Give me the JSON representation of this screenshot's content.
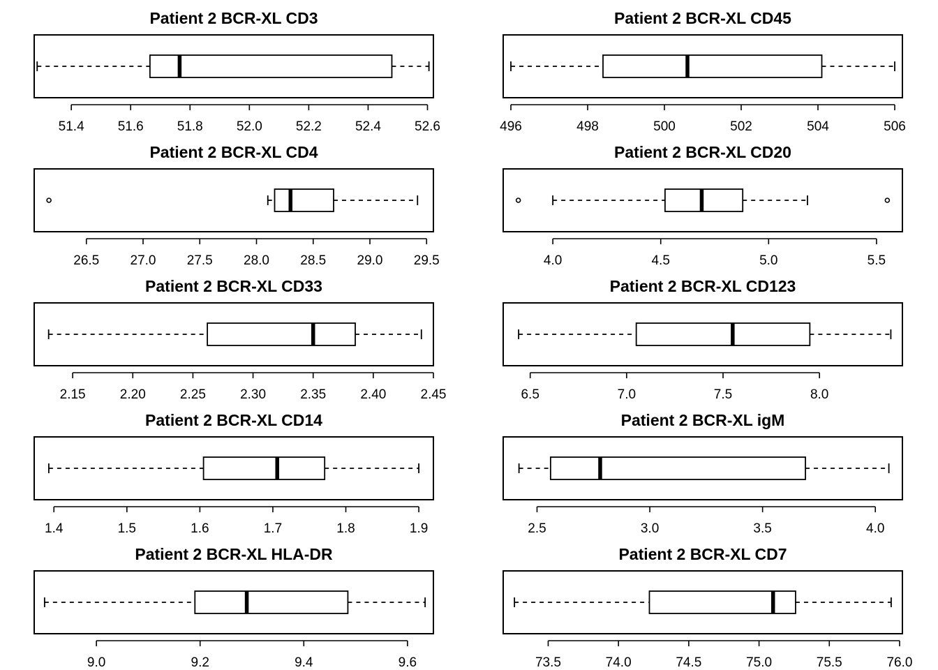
{
  "chart_data": [
    {
      "type": "boxplot",
      "title": "Patient 2 BCR-XL CD3",
      "orientation": "horizontal",
      "xlim": [
        51.275,
        52.62
      ],
      "ticks": [
        "51.4",
        "51.6",
        "51.8",
        "52.0",
        "52.2",
        "52.4",
        "52.6"
      ],
      "whisker_low": 51.285,
      "q1": 51.665,
      "median": 51.765,
      "q3": 52.48,
      "whisker_high": 52.605,
      "outliers": []
    },
    {
      "type": "boxplot",
      "title": "Patient 2 BCR-XL CD45",
      "orientation": "horizontal",
      "xlim": [
        495.8,
        506.2
      ],
      "ticks": [
        "496",
        "498",
        "500",
        "502",
        "504",
        "506"
      ],
      "whisker_low": 496.0,
      "q1": 498.4,
      "median": 500.6,
      "q3": 504.1,
      "whisker_high": 506.0,
      "outliers": []
    },
    {
      "type": "boxplot",
      "title": "Patient 2 BCR-XL CD4",
      "orientation": "horizontal",
      "xlim": [
        26.04,
        29.56
      ],
      "ticks": [
        "26.5",
        "27.0",
        "27.5",
        "28.0",
        "28.5",
        "29.0",
        "29.5"
      ],
      "whisker_low": 28.1,
      "q1": 28.16,
      "median": 28.3,
      "q3": 28.68,
      "whisker_high": 29.42,
      "outliers": [
        26.17
      ]
    },
    {
      "type": "boxplot",
      "title": "Patient 2 BCR-XL CD20",
      "orientation": "horizontal",
      "xlim": [
        3.77,
        5.62
      ],
      "ticks": [
        "4.0",
        "4.5",
        "5.0",
        "5.5"
      ],
      "whisker_low": 4.0,
      "q1": 4.52,
      "median": 4.69,
      "q3": 4.88,
      "whisker_high": 5.18,
      "outliers": [
        3.84,
        5.55
      ]
    },
    {
      "type": "boxplot",
      "title": "Patient 2 BCR-XL CD33",
      "orientation": "horizontal",
      "xlim": [
        2.118,
        2.45
      ],
      "ticks": [
        "2.15",
        "2.20",
        "2.25",
        "2.30",
        "2.35",
        "2.40",
        "2.45"
      ],
      "whisker_low": 2.13,
      "q1": 2.262,
      "median": 2.35,
      "q3": 2.385,
      "whisker_high": 2.44,
      "outliers": []
    },
    {
      "type": "boxplot",
      "title": "Patient 2 BCR-XL CD123",
      "orientation": "horizontal",
      "xlim": [
        6.36,
        8.43
      ],
      "ticks": [
        "6.5",
        "7.0",
        "7.5",
        "8.0"
      ],
      "whisker_low": 6.44,
      "q1": 7.05,
      "median": 7.55,
      "q3": 7.95,
      "whisker_high": 8.37,
      "outliers": []
    },
    {
      "type": "boxplot",
      "title": "Patient 2 BCR-XL CD14",
      "orientation": "horizontal",
      "xlim": [
        1.373,
        1.92
      ],
      "ticks": [
        "1.4",
        "1.5",
        "1.6",
        "1.7",
        "1.8",
        "1.9"
      ],
      "whisker_low": 1.393,
      "q1": 1.605,
      "median": 1.706,
      "q3": 1.771,
      "whisker_high": 1.9,
      "outliers": []
    },
    {
      "type": "boxplot",
      "title": "Patient 2 BCR-XL igM",
      "orientation": "horizontal",
      "xlim": [
        2.35,
        4.12
      ],
      "ticks": [
        "2.5",
        "3.0",
        "3.5",
        "4.0"
      ],
      "whisker_low": 2.42,
      "q1": 2.56,
      "median": 2.78,
      "q3": 3.69,
      "whisker_high": 4.06,
      "outliers": []
    },
    {
      "type": "boxplot",
      "title": "Patient 2 BCR-XL HLA-DR",
      "orientation": "horizontal",
      "xlim": [
        8.88,
        9.65
      ],
      "ticks": [
        "9.0",
        "9.2",
        "9.4",
        "9.6"
      ],
      "whisker_low": 8.9,
      "q1": 9.19,
      "median": 9.29,
      "q3": 9.485,
      "whisker_high": 9.634,
      "outliers": []
    },
    {
      "type": "boxplot",
      "title": "Patient 2 BCR-XL CD7",
      "orientation": "horizontal",
      "xlim": [
        73.18,
        76.02
      ],
      "ticks": [
        "73.5",
        "74.0",
        "74.5",
        "75.0",
        "75.5",
        "76.0"
      ],
      "whisker_low": 73.26,
      "q1": 74.22,
      "median": 75.1,
      "q3": 75.26,
      "whisker_high": 75.94,
      "outliers": []
    }
  ]
}
